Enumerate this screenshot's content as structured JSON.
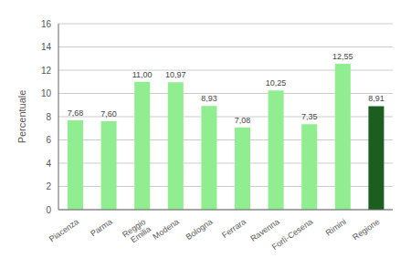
{
  "chart_data": {
    "type": "bar",
    "ylabel": "Percentuale",
    "categories": [
      "Piacenza",
      "Parma",
      "Reggio\nEmilia",
      "Modena",
      "Bologna",
      "Ferrara",
      "Ravenna",
      "Forlì-Cesena",
      "Rimini",
      "Regione"
    ],
    "values": [
      7.68,
      7.6,
      11.0,
      10.97,
      8.93,
      7.08,
      10.25,
      7.35,
      12.55,
      8.91
    ],
    "value_labels": [
      "7,68",
      "7,60",
      "11,00",
      "10,97",
      "8,93",
      "7,08",
      "10,25",
      "7,35",
      "12,55",
      "8,91"
    ],
    "data_labels": true,
    "colors": [
      "#90EE90",
      "#90EE90",
      "#90EE90",
      "#90EE90",
      "#90EE90",
      "#90EE90",
      "#90EE90",
      "#90EE90",
      "#90EE90",
      "#1b5e20"
    ],
    "ylim": [
      0,
      16
    ],
    "yticks": [
      0,
      2,
      4,
      6,
      8,
      10,
      12,
      14,
      16
    ],
    "grid": true
  }
}
